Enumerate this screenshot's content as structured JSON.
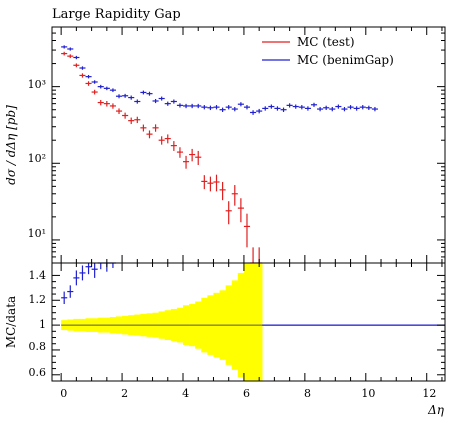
{
  "title": "Large Rapidity Gap",
  "ylabel_main": "dσ / dΔη  [pb]",
  "ylabel_ratio": "MC/data",
  "xlabel": "Δη",
  "legend": [
    "MC (test)",
    "MC (benimGap)"
  ],
  "colors": {
    "test": "#e02020",
    "benim": "#2020d0",
    "band": "#ffff00",
    "ref": "#555555"
  },
  "yticks_main": [
    "10¹",
    "10²",
    "10³"
  ],
  "yticks_ratio": [
    "0.6",
    "0.8",
    "1",
    "1.2",
    "1.4"
  ],
  "xticks": [
    "0",
    "2",
    "4",
    "6",
    "8",
    "10",
    "12"
  ],
  "chart_data": {
    "type": "scatter",
    "title": "Large Rapidity Gap",
    "xlabel": "Δη",
    "ylabel": "dσ / dΔη [pb]",
    "xlim": [
      -0.3,
      12.6
    ],
    "ylim": [
      5,
      6000
    ],
    "yscale": "log",
    "legend_position": "top-right",
    "bin_width": 0.2,
    "series": [
      {
        "name": "MC (test)",
        "color": "#e02020",
        "x": [
          0.1,
          0.3,
          0.5,
          0.7,
          0.9,
          1.1,
          1.3,
          1.5,
          1.7,
          1.9,
          2.1,
          2.3,
          2.5,
          2.7,
          2.9,
          3.1,
          3.3,
          3.5,
          3.7,
          3.9,
          4.1,
          4.3,
          4.5,
          4.7,
          4.9,
          5.1,
          5.3,
          5.5,
          5.7,
          5.9,
          6.1,
          6.3,
          6.5
        ],
        "y": [
          2700,
          2500,
          1900,
          1400,
          1100,
          850,
          620,
          600,
          560,
          480,
          420,
          360,
          370,
          290,
          240,
          290,
          200,
          210,
          170,
          140,
          105,
          130,
          120,
          58,
          55,
          57,
          45,
          24,
          40,
          26,
          15,
          5,
          5
        ],
        "yerr": [
          150,
          140,
          110,
          90,
          75,
          60,
          50,
          50,
          45,
          40,
          38,
          35,
          35,
          30,
          28,
          32,
          25,
          28,
          25,
          22,
          20,
          24,
          25,
          12,
          12,
          14,
          12,
          8,
          12,
          9,
          7,
          3,
          3
        ]
      },
      {
        "name": "MC (benimGap)",
        "color": "#2020d0",
        "x": [
          0.1,
          0.3,
          0.5,
          0.7,
          0.9,
          1.1,
          1.3,
          1.5,
          1.7,
          1.9,
          2.1,
          2.3,
          2.5,
          2.7,
          2.9,
          3.1,
          3.3,
          3.5,
          3.7,
          3.9,
          4.1,
          4.3,
          4.5,
          4.7,
          4.9,
          5.1,
          5.3,
          5.5,
          5.7,
          5.9,
          6.1,
          6.3,
          6.5,
          6.7,
          6.9,
          7.1,
          7.3,
          7.5,
          7.7,
          7.9,
          8.1,
          8.3,
          8.5,
          8.7,
          8.9,
          9.1,
          9.3,
          9.5,
          9.7,
          9.9,
          10.1,
          10.3
        ],
        "y": [
          3300,
          3100,
          2400,
          1750,
          1350,
          1150,
          1000,
          950,
          900,
          750,
          760,
          720,
          640,
          840,
          810,
          650,
          700,
          600,
          640,
          570,
          560,
          560,
          560,
          540,
          530,
          540,
          500,
          540,
          510,
          590,
          540,
          460,
          480,
          520,
          550,
          520,
          500,
          570,
          550,
          540,
          520,
          580,
          510,
          530,
          510,
          550,
          510,
          540,
          520,
          540,
          530,
          510
        ],
        "yerr": [
          160,
          150,
          120,
          90,
          70,
          60,
          55,
          50,
          50,
          45,
          45,
          45,
          40,
          48,
          48,
          40,
          42,
          38,
          40,
          36,
          36,
          36,
          36,
          35,
          35,
          35,
          33,
          35,
          33,
          37,
          35,
          32,
          32,
          34,
          35,
          34,
          33,
          36,
          35,
          35,
          34,
          36,
          33,
          34,
          33,
          35,
          33,
          34,
          34,
          35,
          34,
          33
        ]
      }
    ],
    "ratio": {
      "ylabel": "MC/data",
      "ylim": [
        0.55,
        1.5
      ],
      "reference": 1.0,
      "series_benim_x": [
        0.1,
        0.3,
        0.5,
        0.7,
        0.9,
        1.1,
        1.3,
        1.5,
        1.7
      ],
      "series_benim_y": [
        1.22,
        1.27,
        1.38,
        1.42,
        1.47,
        1.45,
        1.52,
        1.5,
        1.54
      ],
      "series_benim_err": [
        0.05,
        0.05,
        0.06,
        0.06,
        0.06,
        0.07,
        0.07,
        0.07,
        0.08
      ],
      "band_x": [
        0.1,
        0.3,
        0.5,
        0.7,
        0.9,
        1.1,
        1.3,
        1.5,
        1.7,
        1.9,
        2.1,
        2.3,
        2.5,
        2.7,
        2.9,
        3.1,
        3.3,
        3.5,
        3.7,
        3.9,
        4.1,
        4.3,
        4.5,
        4.7,
        4.9,
        5.1,
        5.3,
        5.5,
        5.7,
        5.9,
        6.1,
        6.3,
        6.5
      ],
      "band_halfwidth": [
        0.04,
        0.045,
        0.05,
        0.05,
        0.055,
        0.055,
        0.06,
        0.06,
        0.065,
        0.07,
        0.075,
        0.08,
        0.085,
        0.09,
        0.095,
        0.1,
        0.11,
        0.12,
        0.13,
        0.14,
        0.16,
        0.17,
        0.19,
        0.22,
        0.24,
        0.26,
        0.28,
        0.32,
        0.36,
        0.42,
        0.5,
        0.6,
        0.7
      ]
    }
  }
}
